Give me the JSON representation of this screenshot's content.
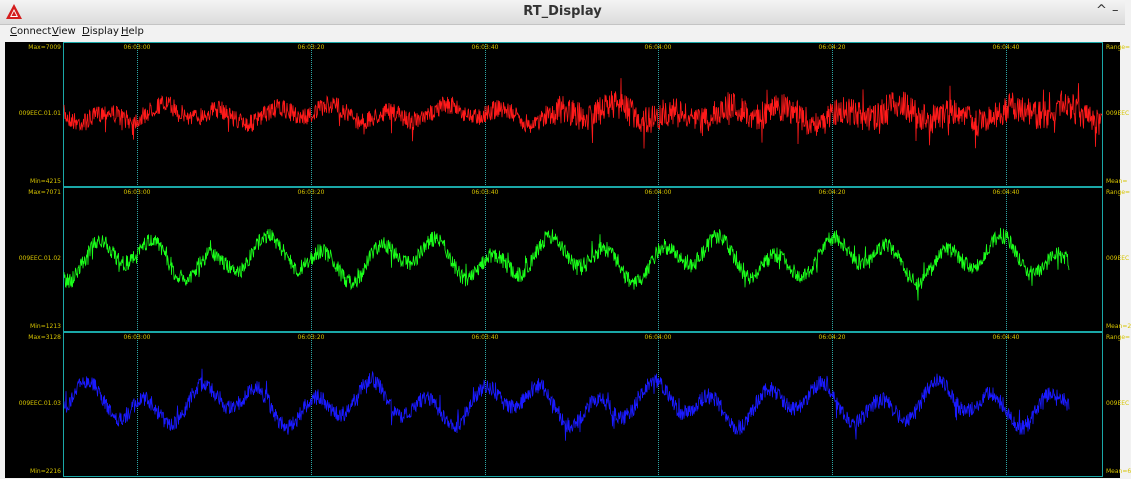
{
  "window": {
    "title": "RT_Display",
    "maximize_glyph": "^",
    "minimize_glyph": "–"
  },
  "icons": {
    "app": "rt-display-logo-icon"
  },
  "menu": [
    {
      "label": "Connect",
      "accel": "C",
      "rest": "onnect"
    },
    {
      "label": "View",
      "accel": "V",
      "rest": "iew"
    },
    {
      "label": "Display",
      "accel": "D",
      "rest": "isplay"
    },
    {
      "label": "Help",
      "accel": "H",
      "rest": "elp"
    }
  ],
  "time_ticks": [
    "06:03:00",
    "06:03:20",
    "06:03:40",
    "06:04:00",
    "06:04:20",
    "06:04:40"
  ],
  "channels": [
    {
      "name": "009EEC.01.01",
      "max": "Max=7009",
      "min": "Min=4215",
      "right_top": "Range=",
      "right_mid": "009EEC",
      "right_bottom": "Mean=",
      "color": "#ff1a1a"
    },
    {
      "name": "009EEC.01.02",
      "max": "Max=7071",
      "min": "Min=1213",
      "right_top": "Range=",
      "right_mid": "009EEC",
      "right_bottom": "Mean=2",
      "color": "#1aff1a"
    },
    {
      "name": "009EEC.01.03",
      "max": "Max=3128",
      "min": "Min=2216",
      "right_top": "Range=",
      "right_mid": "009EEC",
      "right_bottom": "Mean=6",
      "color": "#1a1aff"
    }
  ]
}
